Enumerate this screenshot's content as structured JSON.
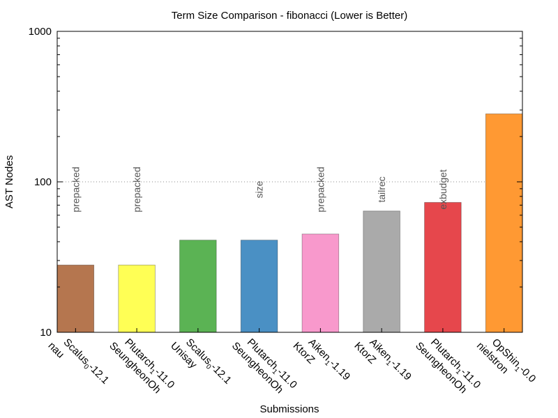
{
  "chart_data": {
    "type": "bar",
    "title": "Term Size Comparison - fibonacci (Lower is Better)",
    "xlabel": "Submissions",
    "ylabel": "AST Nodes",
    "yscale": "log",
    "ylim": [
      10,
      1000
    ],
    "yticks": [
      "10",
      "100",
      "1000"
    ],
    "grid": "dotted line at 100",
    "legend": "none",
    "bars": [
      {
        "line1": "Scalus",
        "sub": "0",
        "version": "-12.1",
        "author": "nau",
        "value": 28,
        "color": "#b5764f",
        "annotation": "prepacked"
      },
      {
        "line1": "Plutarch",
        "sub": "1",
        "version": "-11.0",
        "author": "SeungheonOh",
        "value": 28,
        "color": "#ffff55",
        "annotation": "prepacked"
      },
      {
        "line1": "Scalus",
        "sub": "0",
        "version": "-12.1",
        "author": "Unisay",
        "value": 41,
        "color": "#5bb354",
        "annotation": ""
      },
      {
        "line1": "Plutarch",
        "sub": "1",
        "version": "-11.0",
        "author": "SeungheonOh",
        "value": 41,
        "color": "#4a90c4",
        "annotation": "size"
      },
      {
        "line1": "Aiken",
        "sub": "1",
        "version": "-1.19",
        "author": "KtorZ",
        "value": 45,
        "color": "#f899cc",
        "annotation": "prepacked"
      },
      {
        "line1": "Aiken",
        "sub": "1",
        "version": "-1.19",
        "author": "KtorZ",
        "value": 64,
        "color": "#aaaaaa",
        "annotation": "tailrec"
      },
      {
        "line1": "Plutarch",
        "sub": "1",
        "version": "-11.0",
        "author": "SeungheonOh",
        "value": 73,
        "color": "#e6474c",
        "annotation": "exbudget"
      },
      {
        "line1": "OpShin",
        "sub": "1",
        "version": "-0.0",
        "author": "nielstron",
        "value": 283,
        "color": "#ff9933",
        "annotation": ""
      }
    ]
  }
}
